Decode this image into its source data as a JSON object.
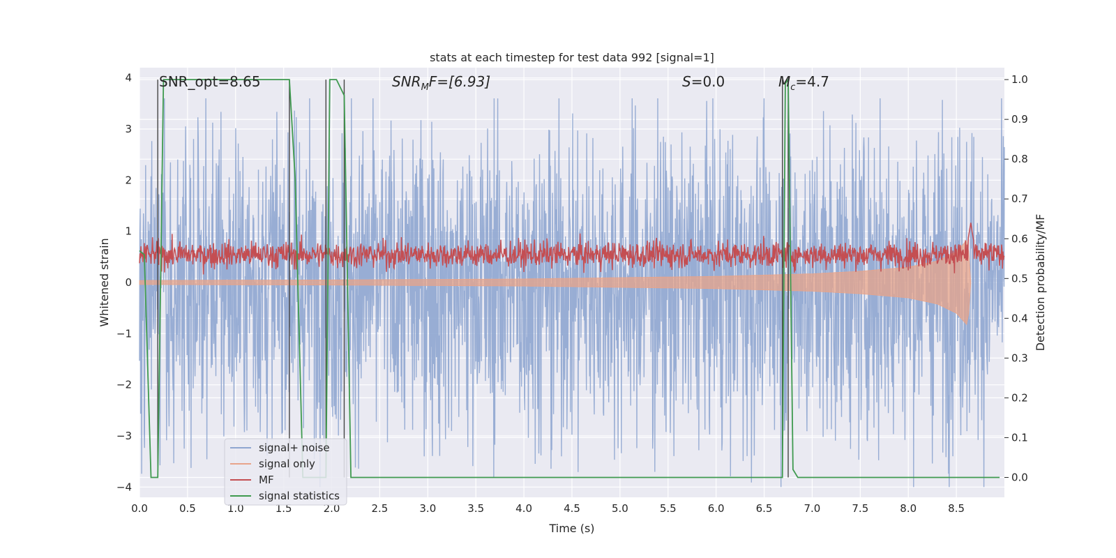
{
  "chart_data": {
    "type": "line",
    "title": "stats at each timestep for test data 992 [signal=1]",
    "xlabel": "Time (s)",
    "ylabel": "Whitened strain",
    "ylabel_right": "Detection probability/MF",
    "xlim": [
      0.0,
      9.0
    ],
    "ylim": [
      -4.2,
      4.2
    ],
    "ylim_right": [
      -0.05,
      1.03
    ],
    "x_ticks": [
      "0.0",
      "0.5",
      "1.0",
      "1.5",
      "2.0",
      "2.5",
      "3.0",
      "3.5",
      "4.0",
      "4.5",
      "5.0",
      "5.5",
      "6.0",
      "6.5",
      "7.0",
      "7.5",
      "8.0",
      "8.5"
    ],
    "y_ticks": [
      "−4",
      "−3",
      "−2",
      "−1",
      "0",
      "1",
      "2",
      "3",
      "4"
    ],
    "y_ticks_right": [
      "0.0",
      "0.1",
      "0.2",
      "0.3",
      "0.4",
      "0.5",
      "0.6",
      "0.7",
      "0.8",
      "0.9",
      "1.0"
    ],
    "grid": true,
    "legend_position": "lower-left",
    "annotations": {
      "snr_opt": "SNR_opt=8.65",
      "snr_mf_main": "SNR",
      "snr_mf_sub": "M",
      "snr_mf_rest": "F=[6.93]",
      "s_main": "S",
      "s_rest": "=0.0",
      "mc_main": "M",
      "mc_sub": "c",
      "mc_rest": "=4.7"
    },
    "vertical_markers_x": [
      0.19,
      1.56,
      1.94,
      2.13,
      6.69,
      6.75
    ],
    "series": [
      {
        "name": "signal+ noise",
        "color": "#8fa6d0",
        "description_values": {
          "x_range": [
            0.0,
            9.0
          ],
          "typical_amplitude": 1.6,
          "peak_range": [
            -4.0,
            3.6
          ]
        }
      },
      {
        "name": "signal only",
        "color": "#e8a48a",
        "envelope_points": [
          [
            0.0,
            0.04
          ],
          [
            2.0,
            0.05
          ],
          [
            4.0,
            0.07
          ],
          [
            6.0,
            0.12
          ],
          [
            7.0,
            0.17
          ],
          [
            7.5,
            0.22
          ],
          [
            8.0,
            0.3
          ],
          [
            8.3,
            0.42
          ],
          [
            8.5,
            0.6
          ],
          [
            8.62,
            0.85
          ],
          [
            8.65,
            0.0
          ]
        ]
      },
      {
        "name": "MF",
        "color": "#c44e52",
        "description_values": {
          "baseline_right_axis": 0.56,
          "noise": 0.03,
          "peak_x": 8.65,
          "peak_value": 0.64
        }
      },
      {
        "name": "signal statistics",
        "color": "#3f9a4f",
        "x": [
          0.0,
          0.05,
          0.12,
          0.19,
          0.25,
          0.5,
          1.0,
          1.5,
          1.56,
          1.62,
          1.7,
          1.8,
          1.94,
          1.98,
          2.05,
          2.13,
          2.2,
          3.0,
          4.0,
          5.0,
          6.0,
          6.69,
          6.72,
          6.75,
          6.8,
          6.85,
          7.0,
          8.0,
          8.95
        ],
        "values": [
          0.57,
          0.56,
          0.0,
          0.0,
          1.0,
          1.0,
          1.0,
          1.0,
          1.0,
          0.75,
          0.0,
          0.0,
          0.0,
          1.0,
          1.0,
          0.96,
          0.0,
          0.0,
          0.0,
          0.0,
          0.0,
          0.0,
          0.99,
          1.0,
          0.02,
          0.0,
          0.0,
          0.0,
          0.0
        ]
      }
    ]
  }
}
